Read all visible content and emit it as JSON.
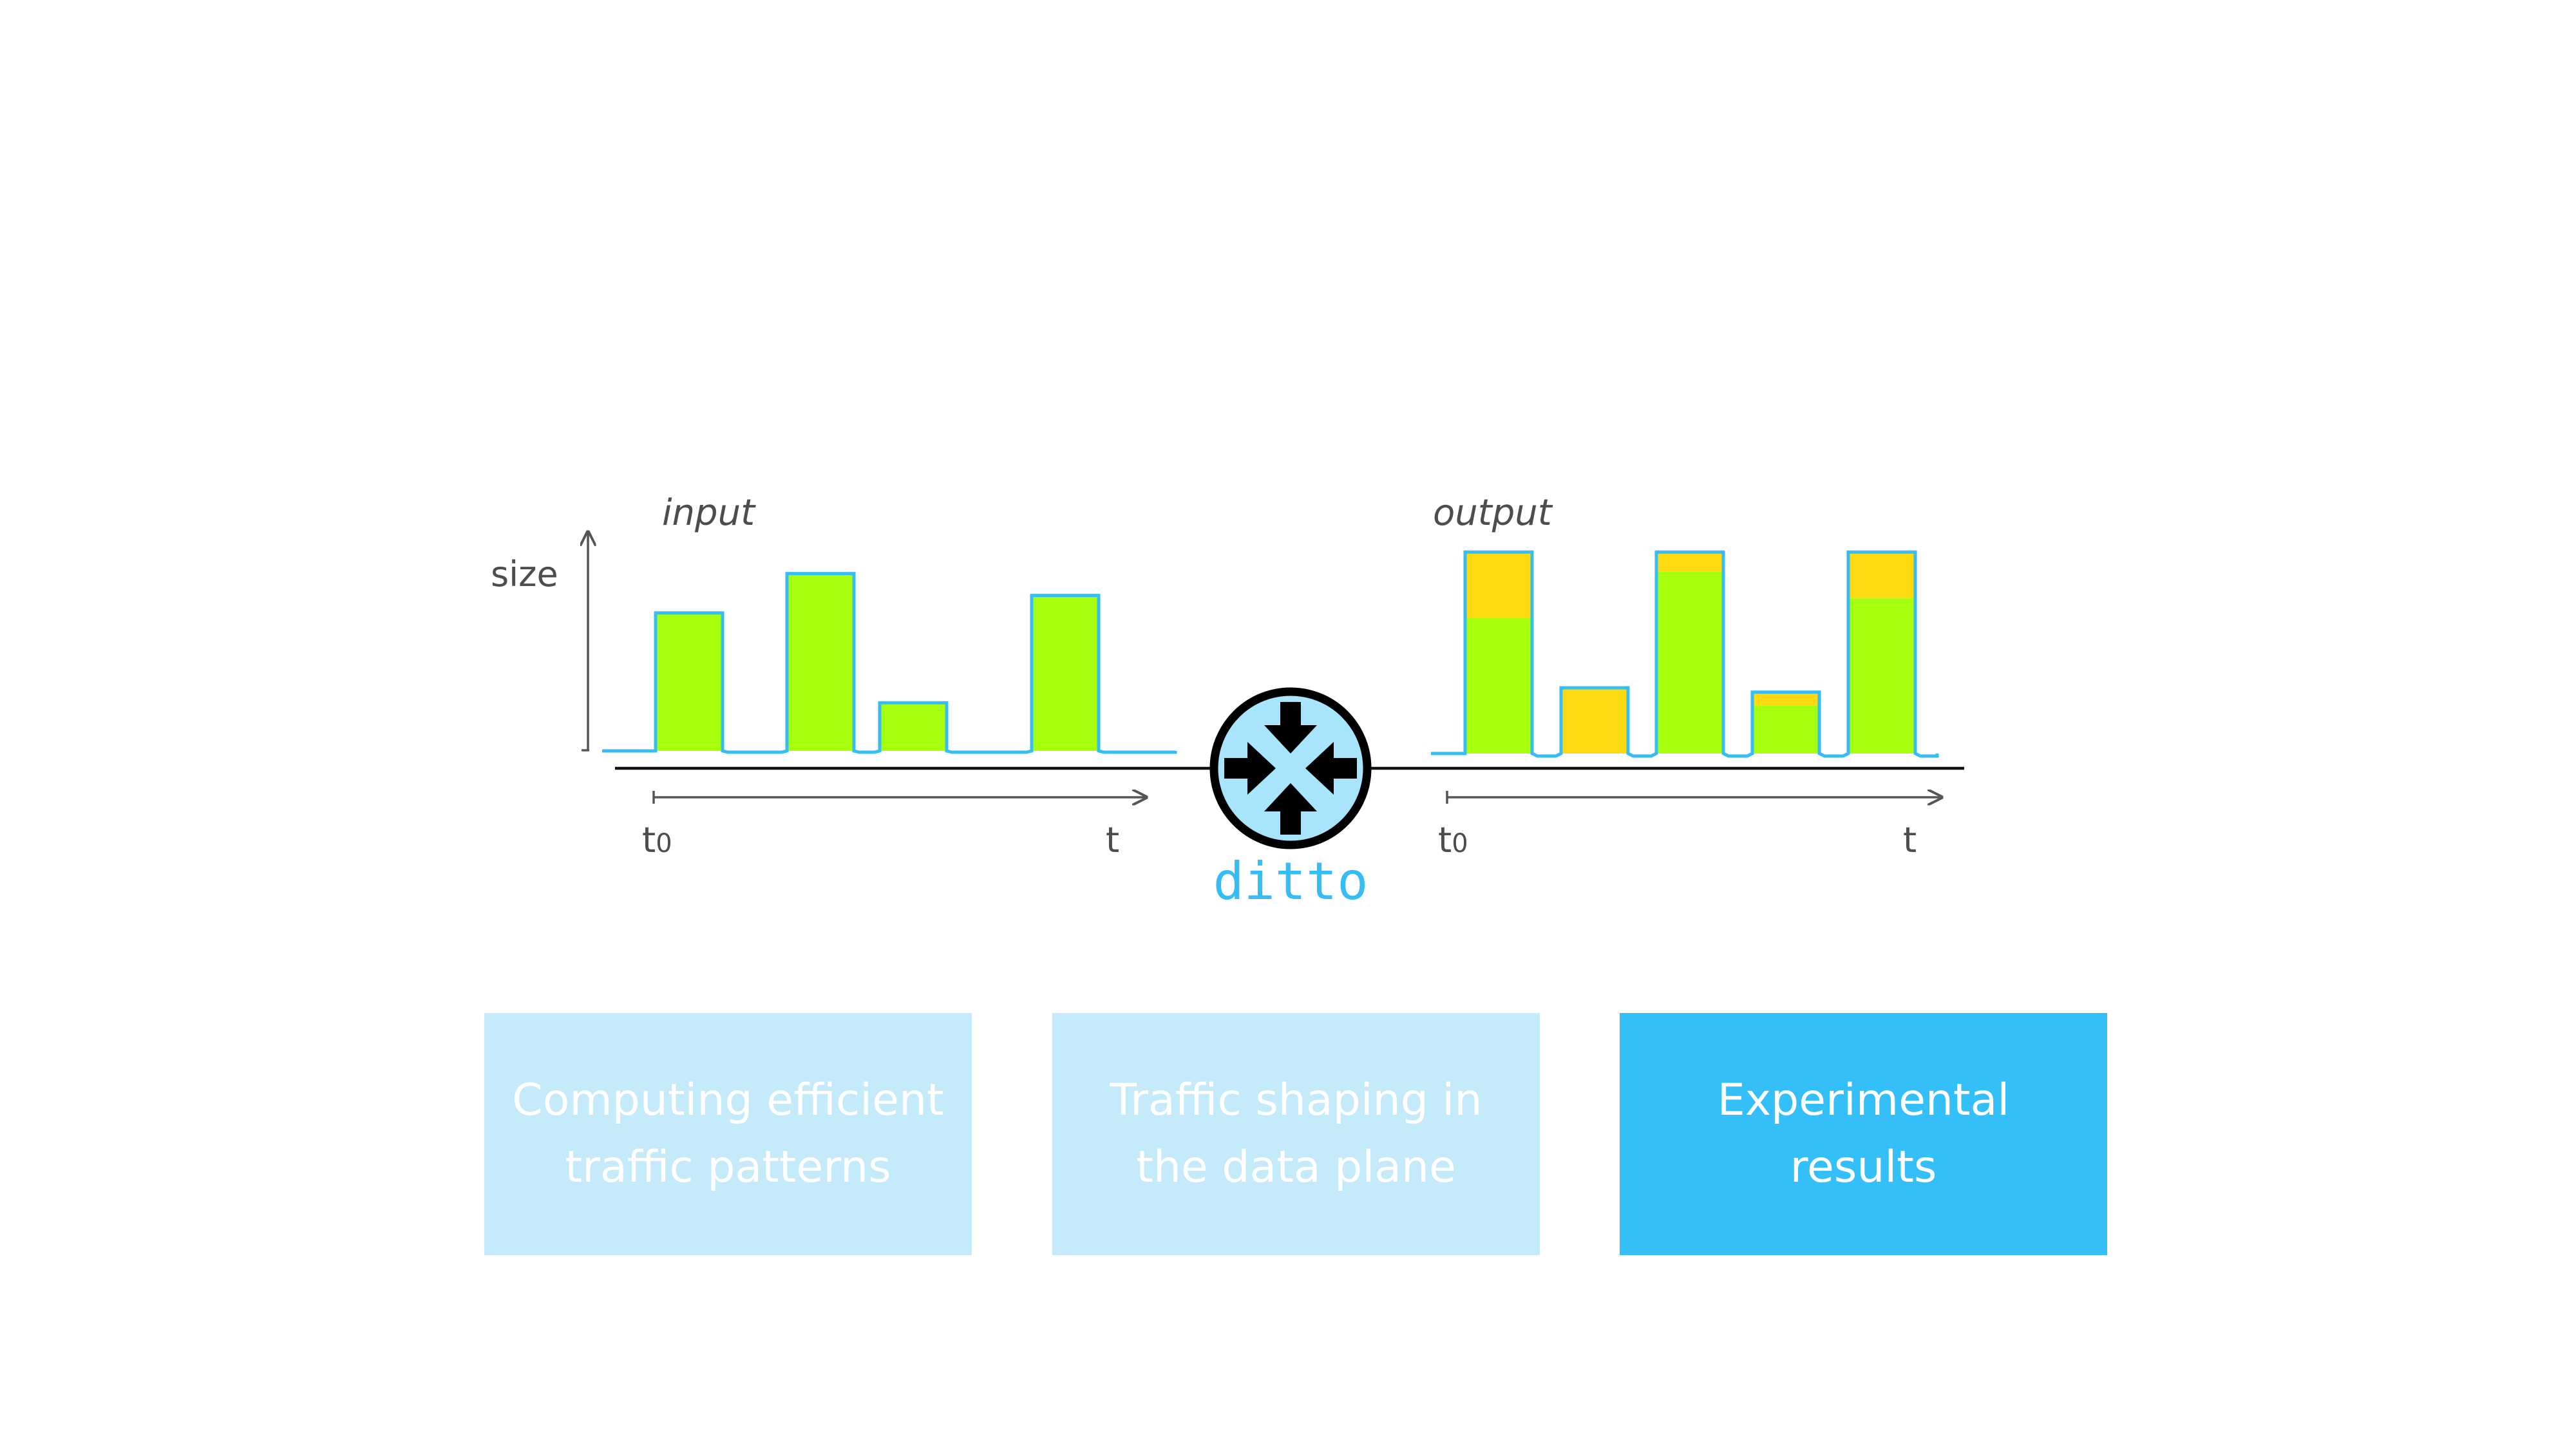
{
  "colors": {
    "packet_green": "#a6ff0d",
    "packet_yellow": "#ffd90f",
    "packet_outline": "#36bdf5",
    "router_fill": "#a8e4fb",
    "ditto_text": "#36bdf5",
    "box_light": "#c5ebfb",
    "box_active": "#35bff8"
  },
  "input_chart": {
    "title": "input",
    "y_label": "size",
    "t_start": "t",
    "t_start_sub": "0",
    "t_end": "t",
    "packets": [
      {
        "green": 0.63
      },
      {
        "green": 0.81
      },
      {
        "green": 0.22
      },
      {
        "green": 0.71
      }
    ]
  },
  "router": {
    "icon": "router-icon",
    "label": "ditto"
  },
  "output_chart": {
    "title": "output",
    "t_start": "t",
    "t_start_sub": "0",
    "t_end": "t",
    "packets": [
      {
        "green": 0.62,
        "padding": 0.3
      },
      {
        "green": 0.0,
        "padding": 0.3
      },
      {
        "green": 0.83,
        "padding": 0.09
      },
      {
        "green": 0.22,
        "padding": 0.06
      },
      {
        "green": 0.71,
        "padding": 0.21
      }
    ]
  },
  "sections": [
    {
      "label": "Computing efficient\ntraffic patterns",
      "active": false
    },
    {
      "label": "Traffic shaping in\nthe data plane",
      "active": false
    },
    {
      "label": "Experimental\nresults",
      "active": true
    }
  ]
}
